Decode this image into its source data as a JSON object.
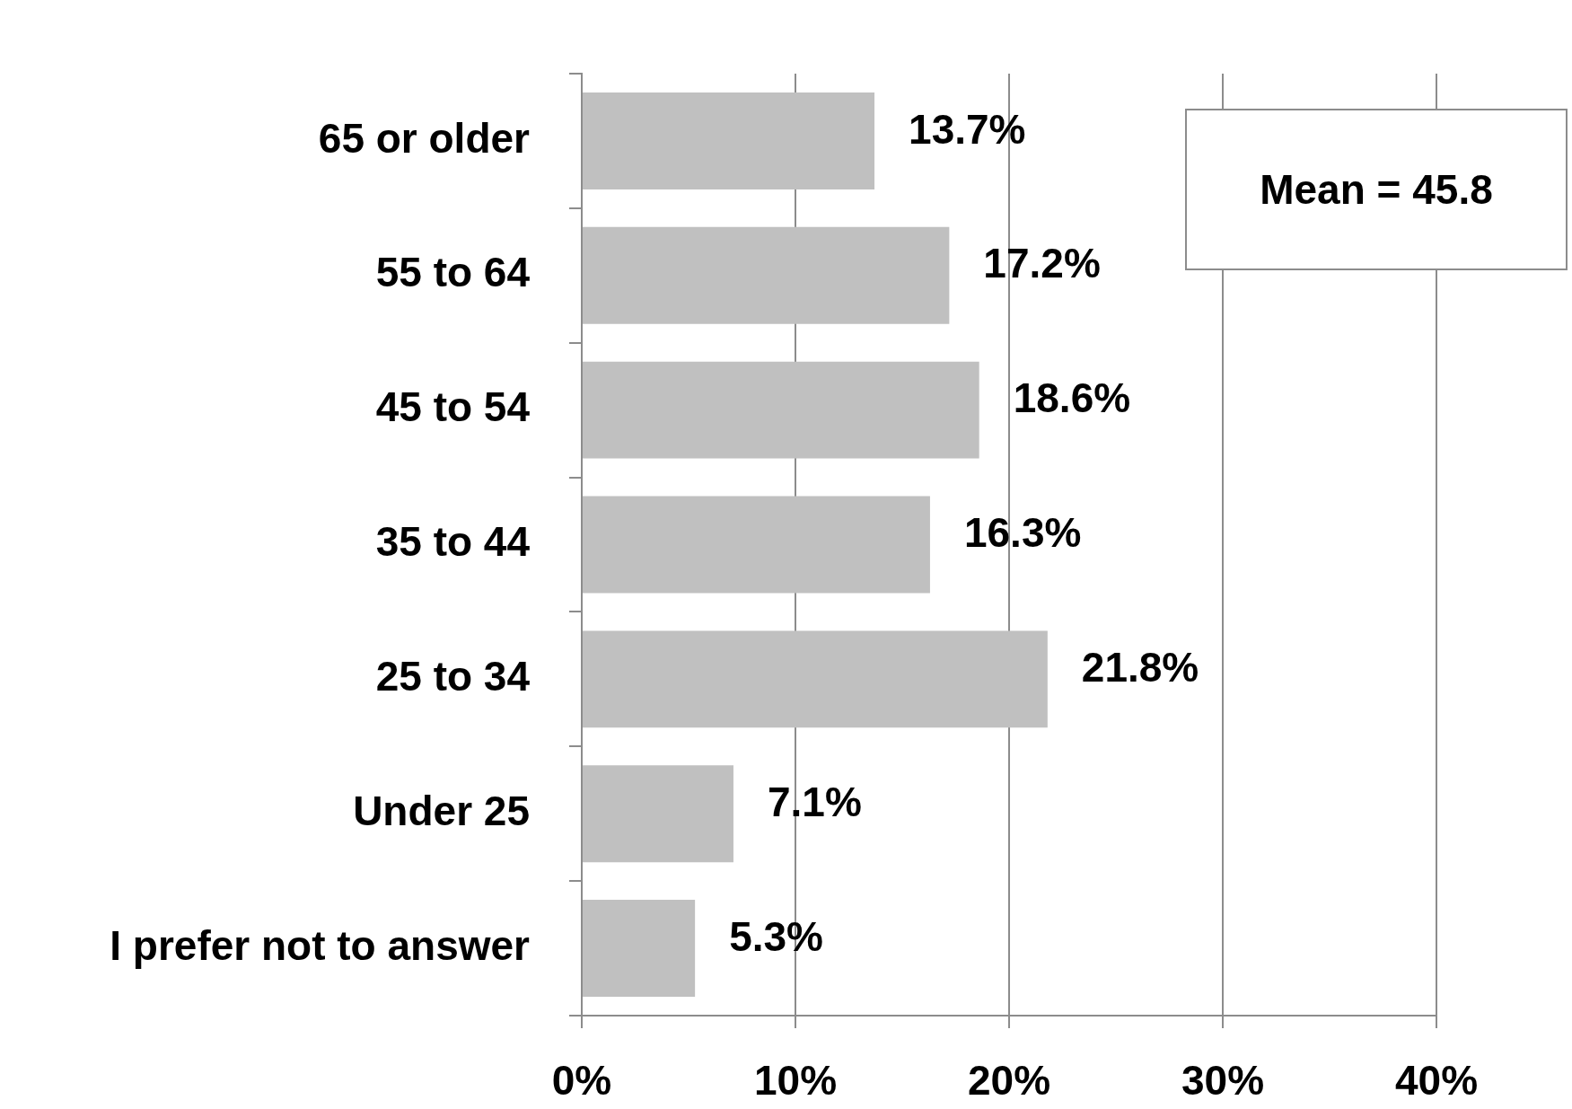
{
  "chart_data": {
    "type": "bar",
    "orientation": "horizontal",
    "categories": [
      "65 or older",
      "55 to 64",
      "45 to 54",
      "35 to 44",
      "25 to 34",
      "Under 25",
      "I prefer not to answer"
    ],
    "values": [
      13.7,
      17.2,
      18.6,
      16.3,
      21.8,
      7.1,
      5.3
    ],
    "value_labels": [
      "13.7%",
      "17.2%",
      "18.6%",
      "16.3%",
      "21.8%",
      "7.1%",
      "5.3%"
    ],
    "color": "#c0c0c0",
    "xlim": [
      0,
      40
    ],
    "xticks": [
      {
        "value": 0,
        "label": "0%"
      },
      {
        "value": 10,
        "label": "10%"
      },
      {
        "value": 20,
        "label": "20%"
      },
      {
        "value": 30,
        "label": "30%"
      },
      {
        "value": 40,
        "label": "40%"
      }
    ],
    "grid": "x",
    "annotations": [
      "Mean = 45.8"
    ]
  }
}
